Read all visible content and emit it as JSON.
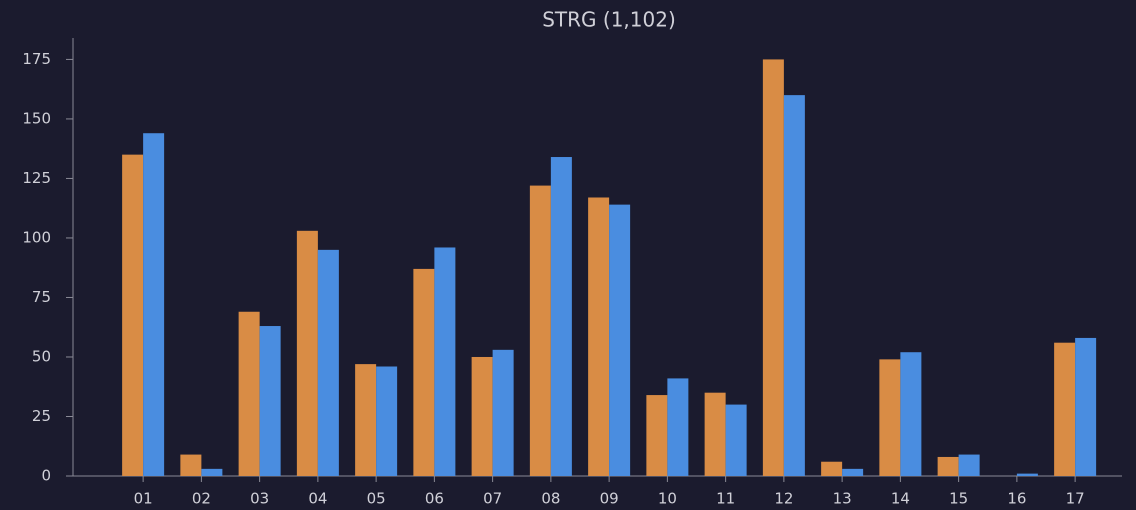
{
  "chart_data": {
    "type": "bar",
    "title": "STRG (1,102)",
    "categories": [
      "01",
      "02",
      "03",
      "04",
      "05",
      "06",
      "07",
      "08",
      "09",
      "10",
      "11",
      "12",
      "13",
      "14",
      "15",
      "16",
      "17"
    ],
    "series": [
      {
        "color": "#d98c45",
        "values": [
          135,
          9,
          69,
          103,
          47,
          87,
          50,
          122,
          117,
          34,
          35,
          175,
          6,
          49,
          8,
          0,
          56
        ]
      },
      {
        "color": "#4a8de0",
        "values": [
          144,
          3,
          63,
          95,
          46,
          96,
          53,
          134,
          114,
          41,
          30,
          160,
          3,
          52,
          9,
          1,
          58
        ]
      }
    ],
    "ylim": [
      0,
      184
    ],
    "yticks": [
      0,
      25,
      50,
      75,
      100,
      125,
      150,
      175
    ],
    "grid": false
  }
}
